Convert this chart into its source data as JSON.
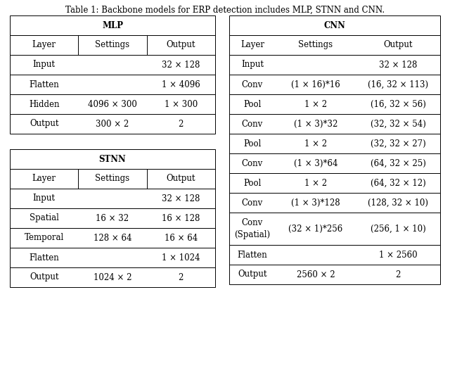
{
  "title": "Table 1: Backbone models for ERP detection includes MLP, STNN and CNN.",
  "title_fontsize": 8.5,
  "content_fontsize": 8.5,
  "bold_fontsize": 8.5,
  "bg_color": "#ffffff",
  "mlp_header": "MLP",
  "stnn_header": "STNN",
  "cnn_header": "CNN",
  "col_header": [
    "Layer",
    "Settings",
    "Output"
  ],
  "mlp_rows": [
    [
      "Input",
      "",
      "32 × 128"
    ],
    [
      "Flatten",
      "",
      "1 × 4096"
    ],
    [
      "Hidden",
      "4096 × 300",
      "1 × 300"
    ],
    [
      "Output",
      "300 × 2",
      "2"
    ]
  ],
  "stnn_data_rows": [
    [
      "Input",
      "",
      "32 × 128"
    ],
    [
      "Spatial",
      "16 × 32",
      "16 × 128"
    ],
    [
      "Temporal",
      "128 × 64",
      "16 × 64"
    ],
    [
      "Flatten",
      "",
      "1 × 1024"
    ],
    [
      "Output",
      "1024 × 2",
      "2"
    ]
  ],
  "cnn_rows": [
    [
      "Input",
      "",
      "32 × 128"
    ],
    [
      "Conv",
      "(1 × 16)*16",
      "(16, 32 × 113)"
    ],
    [
      "Pool",
      "1 × 2",
      "(16, 32 × 56)"
    ],
    [
      "Conv",
      "(1 × 3)*32",
      "(32, 32 × 54)"
    ],
    [
      "Pool",
      "1 × 2",
      "(32, 32 × 27)"
    ],
    [
      "Conv",
      "(1 × 3)*64",
      "(64, 32 × 25)"
    ],
    [
      "Pool",
      "1 × 2",
      "(64, 32 × 12)"
    ],
    [
      "Conv",
      "(1 × 3)*128",
      "(128, 32 × 10)"
    ],
    [
      "Conv\n(Spatial)",
      "(32 × 1)*256",
      "(256, 1 × 10)"
    ],
    [
      "Flatten",
      "",
      "1 × 2560"
    ],
    [
      "Output",
      "2560 × 2",
      "2"
    ]
  ]
}
